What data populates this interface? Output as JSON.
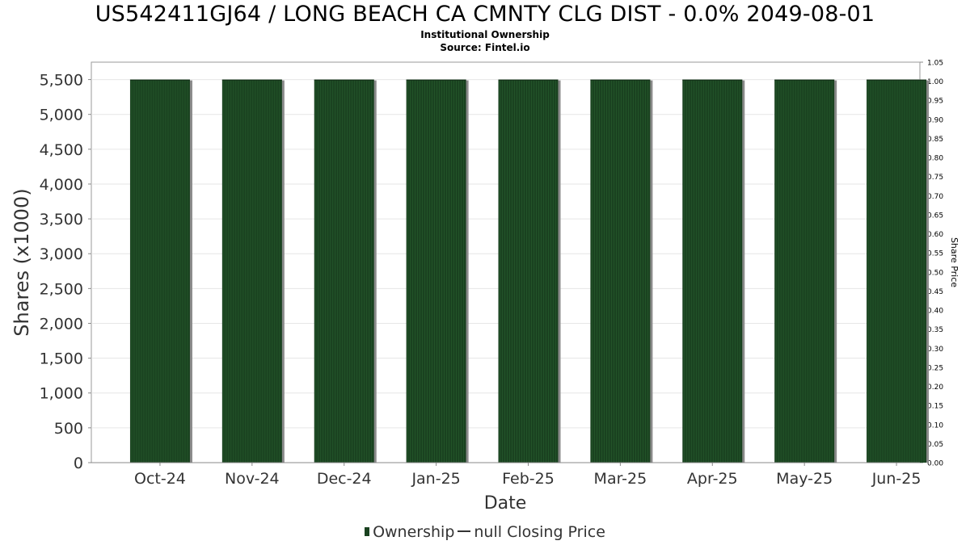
{
  "title": "US542411GJ64 / LONG BEACH CA CMNTY CLG DIST - 0.0% 2049-08-01",
  "subtitle_lines": [
    "Institutional Ownership",
    "Source: Fintel.io"
  ],
  "chart_data": {
    "type": "bar",
    "xlabel": "Date",
    "ylabel": "Shares (x1000)",
    "y2label": "Share Price",
    "categories": [
      "Oct-24",
      "Nov-24",
      "Dec-24",
      "Jan-25",
      "Feb-25",
      "Mar-25",
      "Apr-25",
      "May-25",
      "Jun-25"
    ],
    "series": [
      {
        "name": "Ownership",
        "values": [
          5500,
          5500,
          5500,
          5500,
          5500,
          5500,
          5500,
          5500,
          5500
        ]
      }
    ],
    "ylim": [
      0,
      5750
    ],
    "yticks": [
      "0",
      "500",
      "1,000",
      "1,500",
      "2,000",
      "2,500",
      "3,000",
      "3,500",
      "4,000",
      "4,500",
      "5,000",
      "5,500"
    ],
    "y2lim": [
      0,
      1.05
    ],
    "y2ticks": [
      "0.00",
      "0.05",
      "0.10",
      "0.15",
      "0.20",
      "0.25",
      "0.30",
      "0.35",
      "0.40",
      "0.45",
      "0.50",
      "0.55",
      "0.60",
      "0.65",
      "0.70",
      "0.75",
      "0.80",
      "0.85",
      "0.90",
      "0.95",
      "1.00",
      "1.05"
    ],
    "grid": true,
    "legend_position": "bottom-center",
    "bar_color": "#1a4220",
    "bar_stripe_color": "#2e6b35",
    "bar_shadow_color": "#8a8a8a"
  },
  "legend": {
    "ownership_label": "Ownership",
    "price_label": "null Closing Price",
    "ownership_color": "#1a4220",
    "price_color": "#333333"
  }
}
